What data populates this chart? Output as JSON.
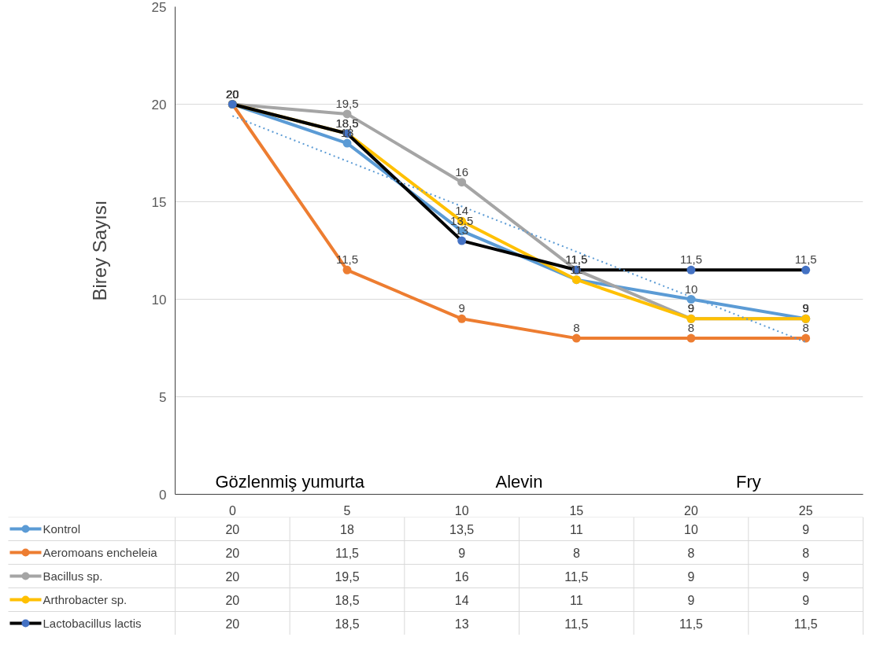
{
  "chart_data": {
    "type": "line",
    "ylabel": "Birey Sayısı",
    "categories": [
      "0",
      "5",
      "10",
      "15",
      "20",
      "25"
    ],
    "ylim": [
      0,
      25
    ],
    "yticks": [
      0,
      5,
      10,
      15,
      20,
      25
    ],
    "grid": "y",
    "legend": "bottom",
    "marker": "circle",
    "line_style": "solid",
    "annotations": [
      "Gözlenmiş yumurta",
      "Alevin",
      "Fry"
    ],
    "series": [
      {
        "name": "Kontrol",
        "color": "#5b9bd5",
        "values": [
          20,
          18,
          13.5,
          11,
          10,
          9
        ],
        "value_labels": [
          "20",
          "18",
          "13,5",
          "11",
          "10",
          "9"
        ]
      },
      {
        "name": "Aeromoans encheleia",
        "color": "#ed7d31",
        "values": [
          20,
          11.5,
          9,
          8,
          8,
          8
        ],
        "value_labels": [
          "20",
          "11,5",
          "9",
          "8",
          "8",
          "8"
        ]
      },
      {
        "name": "Bacillus sp.",
        "color": "#a5a5a5",
        "values": [
          20,
          19.5,
          16,
          11.5,
          9,
          9
        ],
        "value_labels": [
          "20",
          "19,5",
          "16",
          "11,5",
          "9",
          "9"
        ]
      },
      {
        "name": "Arthrobacter sp.",
        "color": "#ffc000",
        "values": [
          20,
          18.5,
          14,
          11,
          9,
          9
        ],
        "value_labels": [
          "20",
          "18,5",
          "14",
          "11",
          "9",
          "9"
        ]
      },
      {
        "name": "Lactobacillus lactis",
        "color": "#000000",
        "values": [
          20,
          18.5,
          13,
          11.5,
          11.5,
          11.5
        ],
        "value_labels": [
          "20",
          "18,5",
          "13",
          "11,5",
          "11,5",
          "11,5"
        ]
      },
      {
        "type": "line",
        "x": [
          "0",
          "25"
        ],
        "values": [
          19.4,
          7.8
        ],
        "color": "#5b9bd5",
        "line_style": "dotted",
        "marker": "none"
      }
    ]
  }
}
